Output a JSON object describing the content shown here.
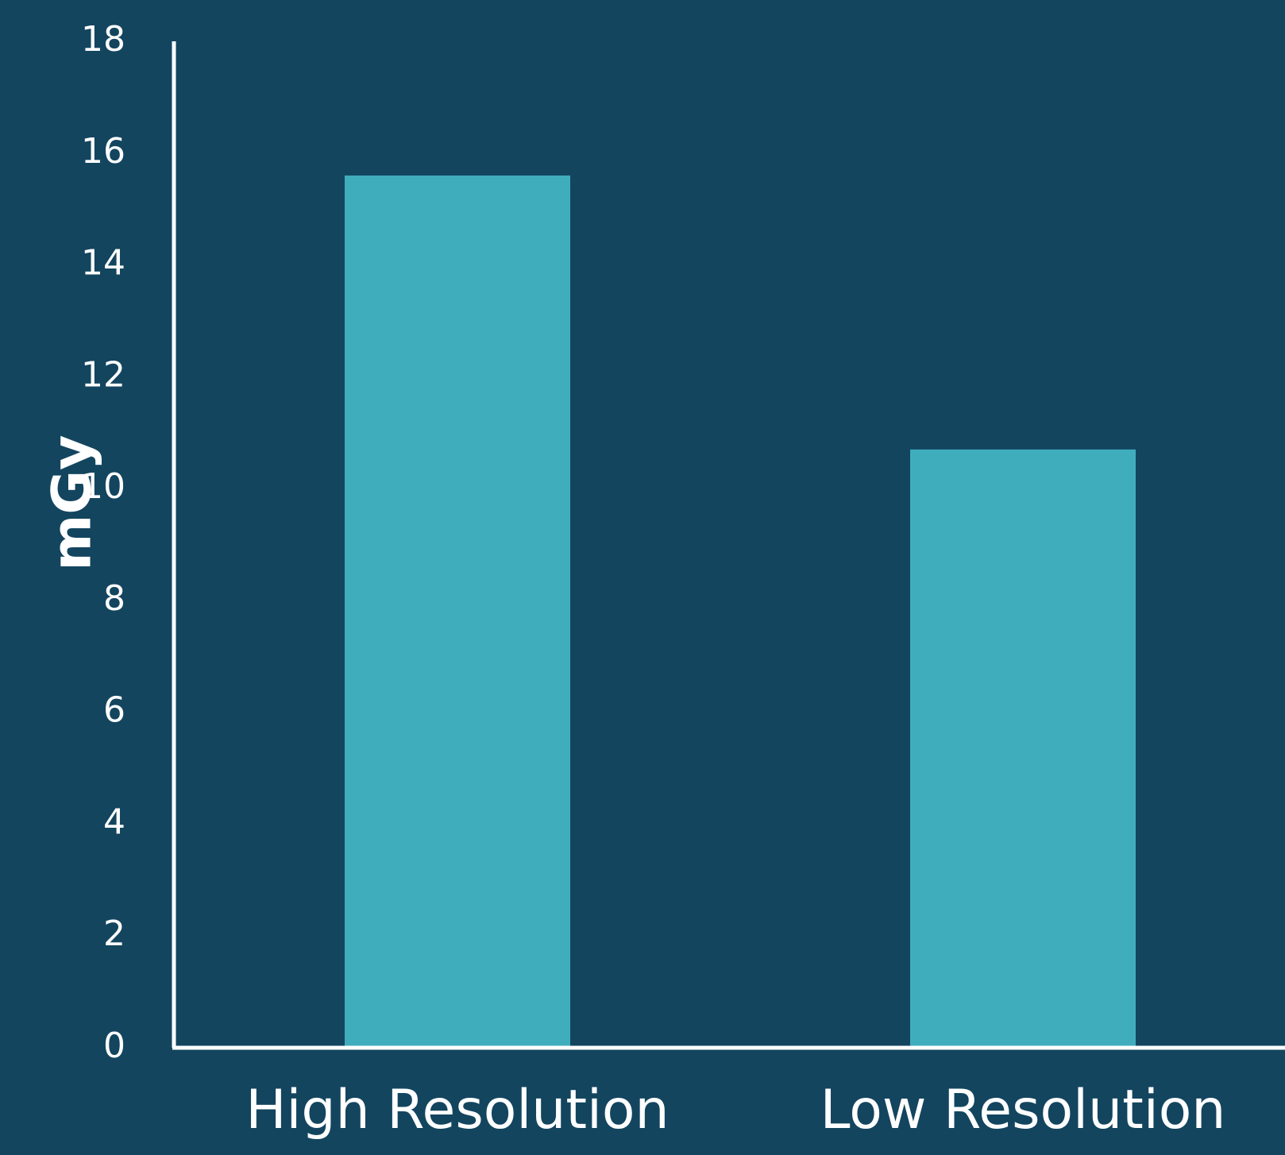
{
  "chart_data": {
    "type": "bar",
    "categories": [
      "High Resolution",
      "Low Resolution"
    ],
    "values": [
      15.6,
      10.7
    ],
    "title": "",
    "xlabel": "",
    "ylabel": "mGy",
    "ylim": [
      0,
      18
    ],
    "yticks": [
      "0",
      "2",
      "4",
      "6",
      "8",
      "10",
      "12",
      "14",
      "16",
      "18"
    ],
    "grid": false,
    "legend": "none",
    "colors": {
      "background": "#13455f",
      "bar": "#40adbd",
      "axis": "#ffffff",
      "text": "#ffffff"
    }
  }
}
